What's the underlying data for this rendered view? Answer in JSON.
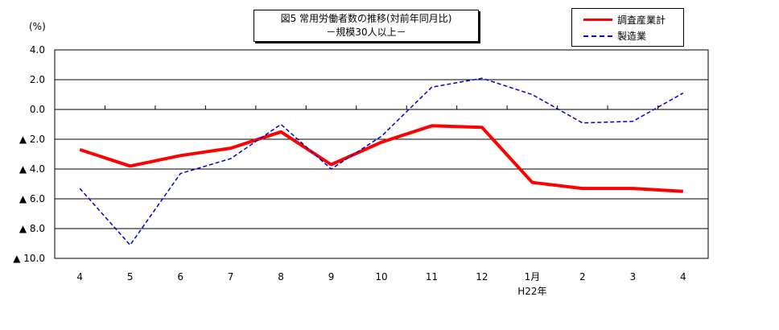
{
  "chart_data": {
    "type": "line",
    "title": "図5 常用労働者数の推移(対前年同月比)",
    "subtitle": "－規模30人以上－",
    "ylabel": "(%)",
    "xlabel": "",
    "ylim": [
      -10,
      4
    ],
    "yticks": [
      4,
      2,
      0,
      -2,
      -4,
      -6,
      -8,
      -10
    ],
    "ytick_labels": [
      "4.0",
      "2.0",
      "0.0",
      "▲ 2.0",
      "▲ 4.0",
      "▲ 6.0",
      "▲ 8.0",
      "▲ 10.0"
    ],
    "categories": [
      "4",
      "5",
      "6",
      "7",
      "8",
      "9",
      "10",
      "11",
      "12",
      "1月",
      "2",
      "3",
      "4"
    ],
    "year_note": "H22年",
    "grid": true,
    "legend_position": "top-right",
    "series": [
      {
        "name": "調査産業計",
        "color": "#ff0000",
        "style": "solid",
        "values": [
          -2.7,
          -3.8,
          -3.1,
          -2.6,
          -1.5,
          -3.7,
          -2.2,
          -1.1,
          -1.2,
          -4.9,
          -5.3,
          -5.3,
          -5.5
        ]
      },
      {
        "name": "製造業",
        "color": "#0000cc",
        "style": "dashed",
        "values": [
          -5.3,
          -9.1,
          -4.3,
          -3.3,
          -1.0,
          -4.0,
          -1.8,
          1.5,
          2.1,
          1.0,
          -0.9,
          -0.8,
          1.1
        ]
      }
    ]
  }
}
